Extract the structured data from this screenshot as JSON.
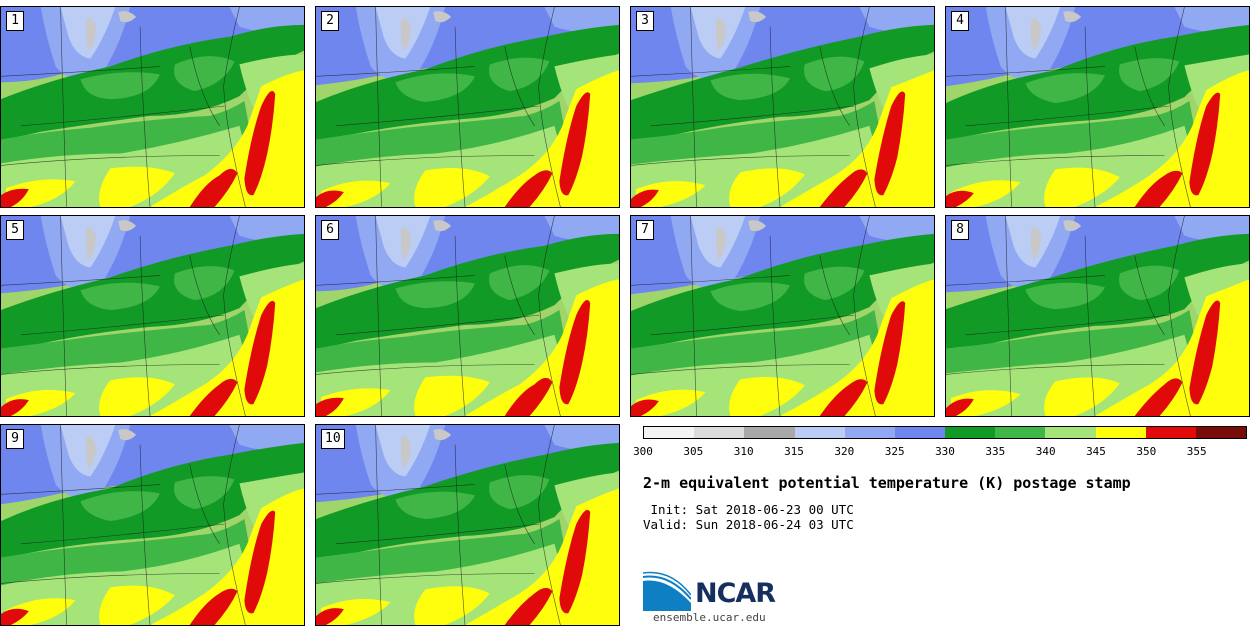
{
  "members": [
    "1",
    "2",
    "3",
    "4",
    "5",
    "6",
    "7",
    "8",
    "9",
    "10"
  ],
  "colorbar": {
    "ticks": [
      "300",
      "305",
      "310",
      "315",
      "320",
      "325",
      "330",
      "335",
      "340",
      "345",
      "350",
      "355"
    ],
    "colors": [
      "#f4f4f4",
      "#dcdcdc",
      "#a9a9a9",
      "#bccdf5",
      "#91a8f3",
      "#6f86ef",
      "#129a26",
      "#3fb645",
      "#a4e479",
      "#fefe0d",
      "#e00a0a",
      "#7a0b0b"
    ]
  },
  "title": "2-m equivalent potential temperature (K) postage stamp",
  "init": " Init: Sat 2018-06-23 00 UTC",
  "valid": "Valid: Sun 2018-06-24 03 UTC",
  "logo": {
    "name": "NCAR",
    "url": "ensemble.ucar.edu"
  }
}
